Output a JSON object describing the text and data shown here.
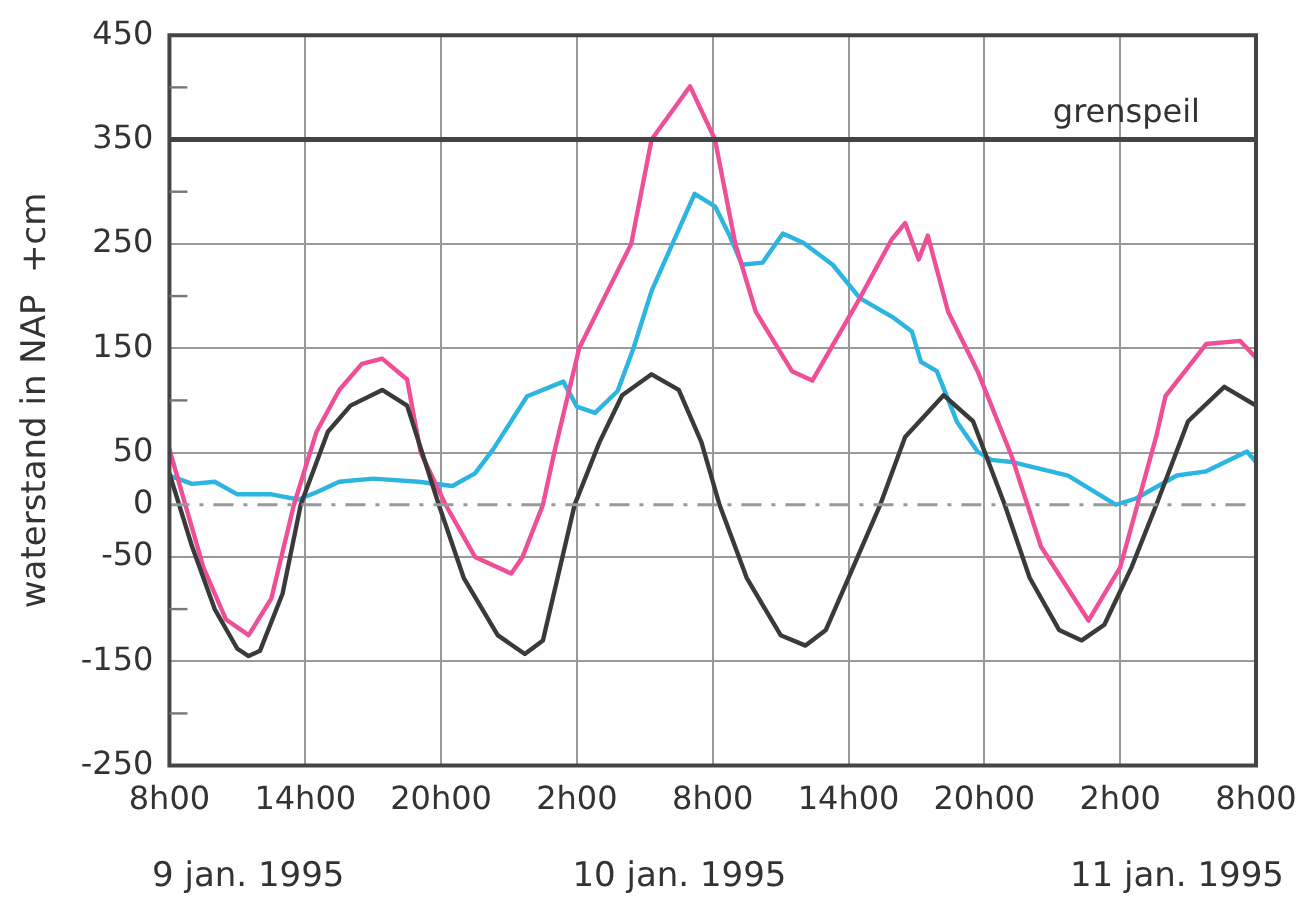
{
  "chart_data": {
    "type": "line",
    "ylabel": "waterstand in NAP  +cm",
    "xlim": [
      "1995-01-09T08:00",
      "1995-01-11T08:00"
    ],
    "xticks": [
      {
        "value": "1995-01-09T08:00",
        "label": "8h00"
      },
      {
        "value": "1995-01-09T14:00",
        "label": "14h00"
      },
      {
        "value": "1995-01-09T20:00",
        "label": "20h00"
      },
      {
        "value": "1995-01-10T02:00",
        "label": "2h00"
      },
      {
        "value": "1995-01-10T08:00",
        "label": "8h00"
      },
      {
        "value": "1995-01-10T14:00",
        "label": "14h00"
      },
      {
        "value": "1995-01-10T20:00",
        "label": "20h00"
      },
      {
        "value": "1995-01-11T02:00",
        "label": "2h00"
      },
      {
        "value": "1995-01-11T08:00",
        "label": "8h00"
      }
    ],
    "ylim": [
      -250,
      450
    ],
    "yticks": [
      450,
      {
        "value": 400,
        "label": null
      },
      350,
      {
        "value": 300,
        "label": null
      },
      250,
      {
        "value": 200,
        "label": null
      },
      150,
      {
        "value": 100,
        "label": null
      },
      50,
      0,
      -50,
      {
        "value": -100,
        "label": null
      },
      -150,
      {
        "value": -200,
        "label": null
      },
      -250
    ],
    "grid": true,
    "marker": "none",
    "line_style": "solid",
    "legend": false,
    "series": [
      {
        "color": "#3a3a3a",
        "x": [
          "1995-01-09T08:00",
          "1995-01-09T09:00",
          "1995-01-09T10:00",
          "1995-01-09T11:00",
          "1995-01-09T11:30",
          "1995-01-09T12:00",
          "1995-01-09T13:00",
          "1995-01-09T13:48",
          "1995-01-09T15:00",
          "1995-01-09T16:00",
          "1995-01-09T17:24",
          "1995-01-09T18:30",
          "1995-01-09T19:54",
          "1995-01-09T21:00",
          "1995-01-09T22:30",
          "1995-01-09T23:42",
          "1995-01-10T00:30",
          "1995-01-10T01:54",
          "1995-01-10T03:00",
          "1995-01-10T04:00",
          "1995-01-10T05:18",
          "1995-01-10T06:30",
          "1995-01-10T07:30",
          "1995-01-10T08:18",
          "1995-01-10T09:30",
          "1995-01-10T11:00",
          "1995-01-10T12:06",
          "1995-01-10T13:00",
          "1995-01-10T14:00",
          "1995-01-10T15:24",
          "1995-01-10T16:30",
          "1995-01-10T18:12",
          "1995-01-10T19:30",
          "1995-01-10T20:54",
          "1995-01-10T22:00",
          "1995-01-10T23:18",
          "1995-01-11T00:18",
          "1995-01-11T01:18",
          "1995-01-11T02:30",
          "1995-01-11T03:36",
          "1995-01-11T05:00",
          "1995-01-11T06:36",
          "1995-01-11T08:00"
        ],
        "values": [
          30,
          -40,
          -100,
          -138,
          -145,
          -140,
          -85,
          0,
          70,
          95,
          110,
          95,
          0,
          -70,
          -125,
          -143,
          -130,
          0,
          60,
          105,
          125,
          110,
          60,
          0,
          -70,
          -125,
          -135,
          -120,
          -70,
          0,
          65,
          105,
          80,
          0,
          -70,
          -120,
          -130,
          -115,
          -60,
          0,
          80,
          113,
          95
        ]
      },
      {
        "color": "#ee4f96",
        "x": [
          "1995-01-09T08:00",
          "1995-01-09T09:30",
          "1995-01-09T10:30",
          "1995-01-09T11:30",
          "1995-01-09T12:30",
          "1995-01-09T13:30",
          "1995-01-09T14:30",
          "1995-01-09T15:30",
          "1995-01-09T16:30",
          "1995-01-09T17:24",
          "1995-01-09T18:30",
          "1995-01-09T19:06",
          "1995-01-09T20:12",
          "1995-01-09T21:30",
          "1995-01-09T23:06",
          "1995-01-09T23:36",
          "1995-01-10T00:30",
          "1995-01-10T01:00",
          "1995-01-10T02:06",
          "1995-01-10T03:12",
          "1995-01-10T04:24",
          "1995-01-10T05:18",
          "1995-01-10T07:00",
          "1995-01-10T08:06",
          "1995-01-10T09:00",
          "1995-01-10T09:54",
          "1995-01-10T11:30",
          "1995-01-10T12:24",
          "1995-01-10T14:30",
          "1995-01-10T15:54",
          "1995-01-10T16:30",
          "1995-01-10T17:06",
          "1995-01-10T17:30",
          "1995-01-10T18:24",
          "1995-01-10T19:42",
          "1995-01-10T21:12",
          "1995-01-10T22:30",
          "1995-01-11T00:36",
          "1995-01-11T02:00",
          "1995-01-11T03:36",
          "1995-01-11T04:00",
          "1995-01-11T05:48",
          "1995-01-11T07:18",
          "1995-01-11T08:00"
        ],
        "values": [
          53,
          -60,
          -110,
          -125,
          -90,
          0,
          70,
          110,
          135,
          140,
          120,
          50,
          0,
          -50,
          -66,
          -50,
          0,
          50,
          150,
          198,
          250,
          350,
          401,
          350,
          250,
          185,
          128,
          119,
          198,
          254,
          270,
          235,
          258,
          185,
          128,
          47,
          -40,
          -111,
          -60,
          66,
          104,
          154,
          157,
          141
        ]
      },
      {
        "color": "#2bb5e0",
        "x": [
          "1995-01-09T08:00",
          "1995-01-09T09:00",
          "1995-01-09T10:00",
          "1995-01-09T11:00",
          "1995-01-09T12:30",
          "1995-01-09T13:42",
          "1995-01-09T14:30",
          "1995-01-09T15:30",
          "1995-01-09T17:00",
          "1995-01-09T19:00",
          "1995-01-09T20:30",
          "1995-01-09T21:30",
          "1995-01-09T22:18",
          "1995-01-09T23:48",
          "1995-01-10T01:24",
          "1995-01-10T02:00",
          "1995-01-10T02:48",
          "1995-01-10T03:48",
          "1995-01-10T04:30",
          "1995-01-10T05:18",
          "1995-01-10T07:12",
          "1995-01-10T08:06",
          "1995-01-10T08:42",
          "1995-01-10T09:18",
          "1995-01-10T10:12",
          "1995-01-10T11:06",
          "1995-01-10T12:00",
          "1995-01-10T13:18",
          "1995-01-10T14:30",
          "1995-01-10T16:00",
          "1995-01-10T16:48",
          "1995-01-10T17:12",
          "1995-01-10T17:54",
          "1995-01-10T18:48",
          "1995-01-10T19:42",
          "1995-01-10T20:18",
          "1995-01-10T21:12",
          "1995-01-10T23:42",
          "1995-01-11T01:48",
          "1995-01-11T02:42",
          "1995-01-11T04:30",
          "1995-01-11T05:48",
          "1995-01-11T07:36",
          "1995-01-11T08:00"
        ],
        "values": [
          28,
          20,
          22,
          10,
          10,
          5,
          12,
          22,
          25,
          22,
          18,
          30,
          53,
          104,
          118,
          94,
          88,
          109,
          150,
          205,
          298,
          286,
          260,
          230,
          232,
          260,
          251,
          230,
          198,
          179,
          166,
          137,
          128,
          79,
          51,
          43,
          41,
          28,
          0,
          6,
          28,
          32,
          51,
          41
        ]
      }
    ],
    "ref_lines": [
      {
        "axis": "y",
        "value": 350,
        "label": "grenspeil",
        "color": "#444444"
      },
      {
        "axis": "y",
        "value": 0,
        "color": "#999999",
        "line_style": "dashed"
      }
    ],
    "annotations": [
      "9 jan. 1995",
      "10 jan. 1995",
      "11 jan. 1995"
    ]
  }
}
